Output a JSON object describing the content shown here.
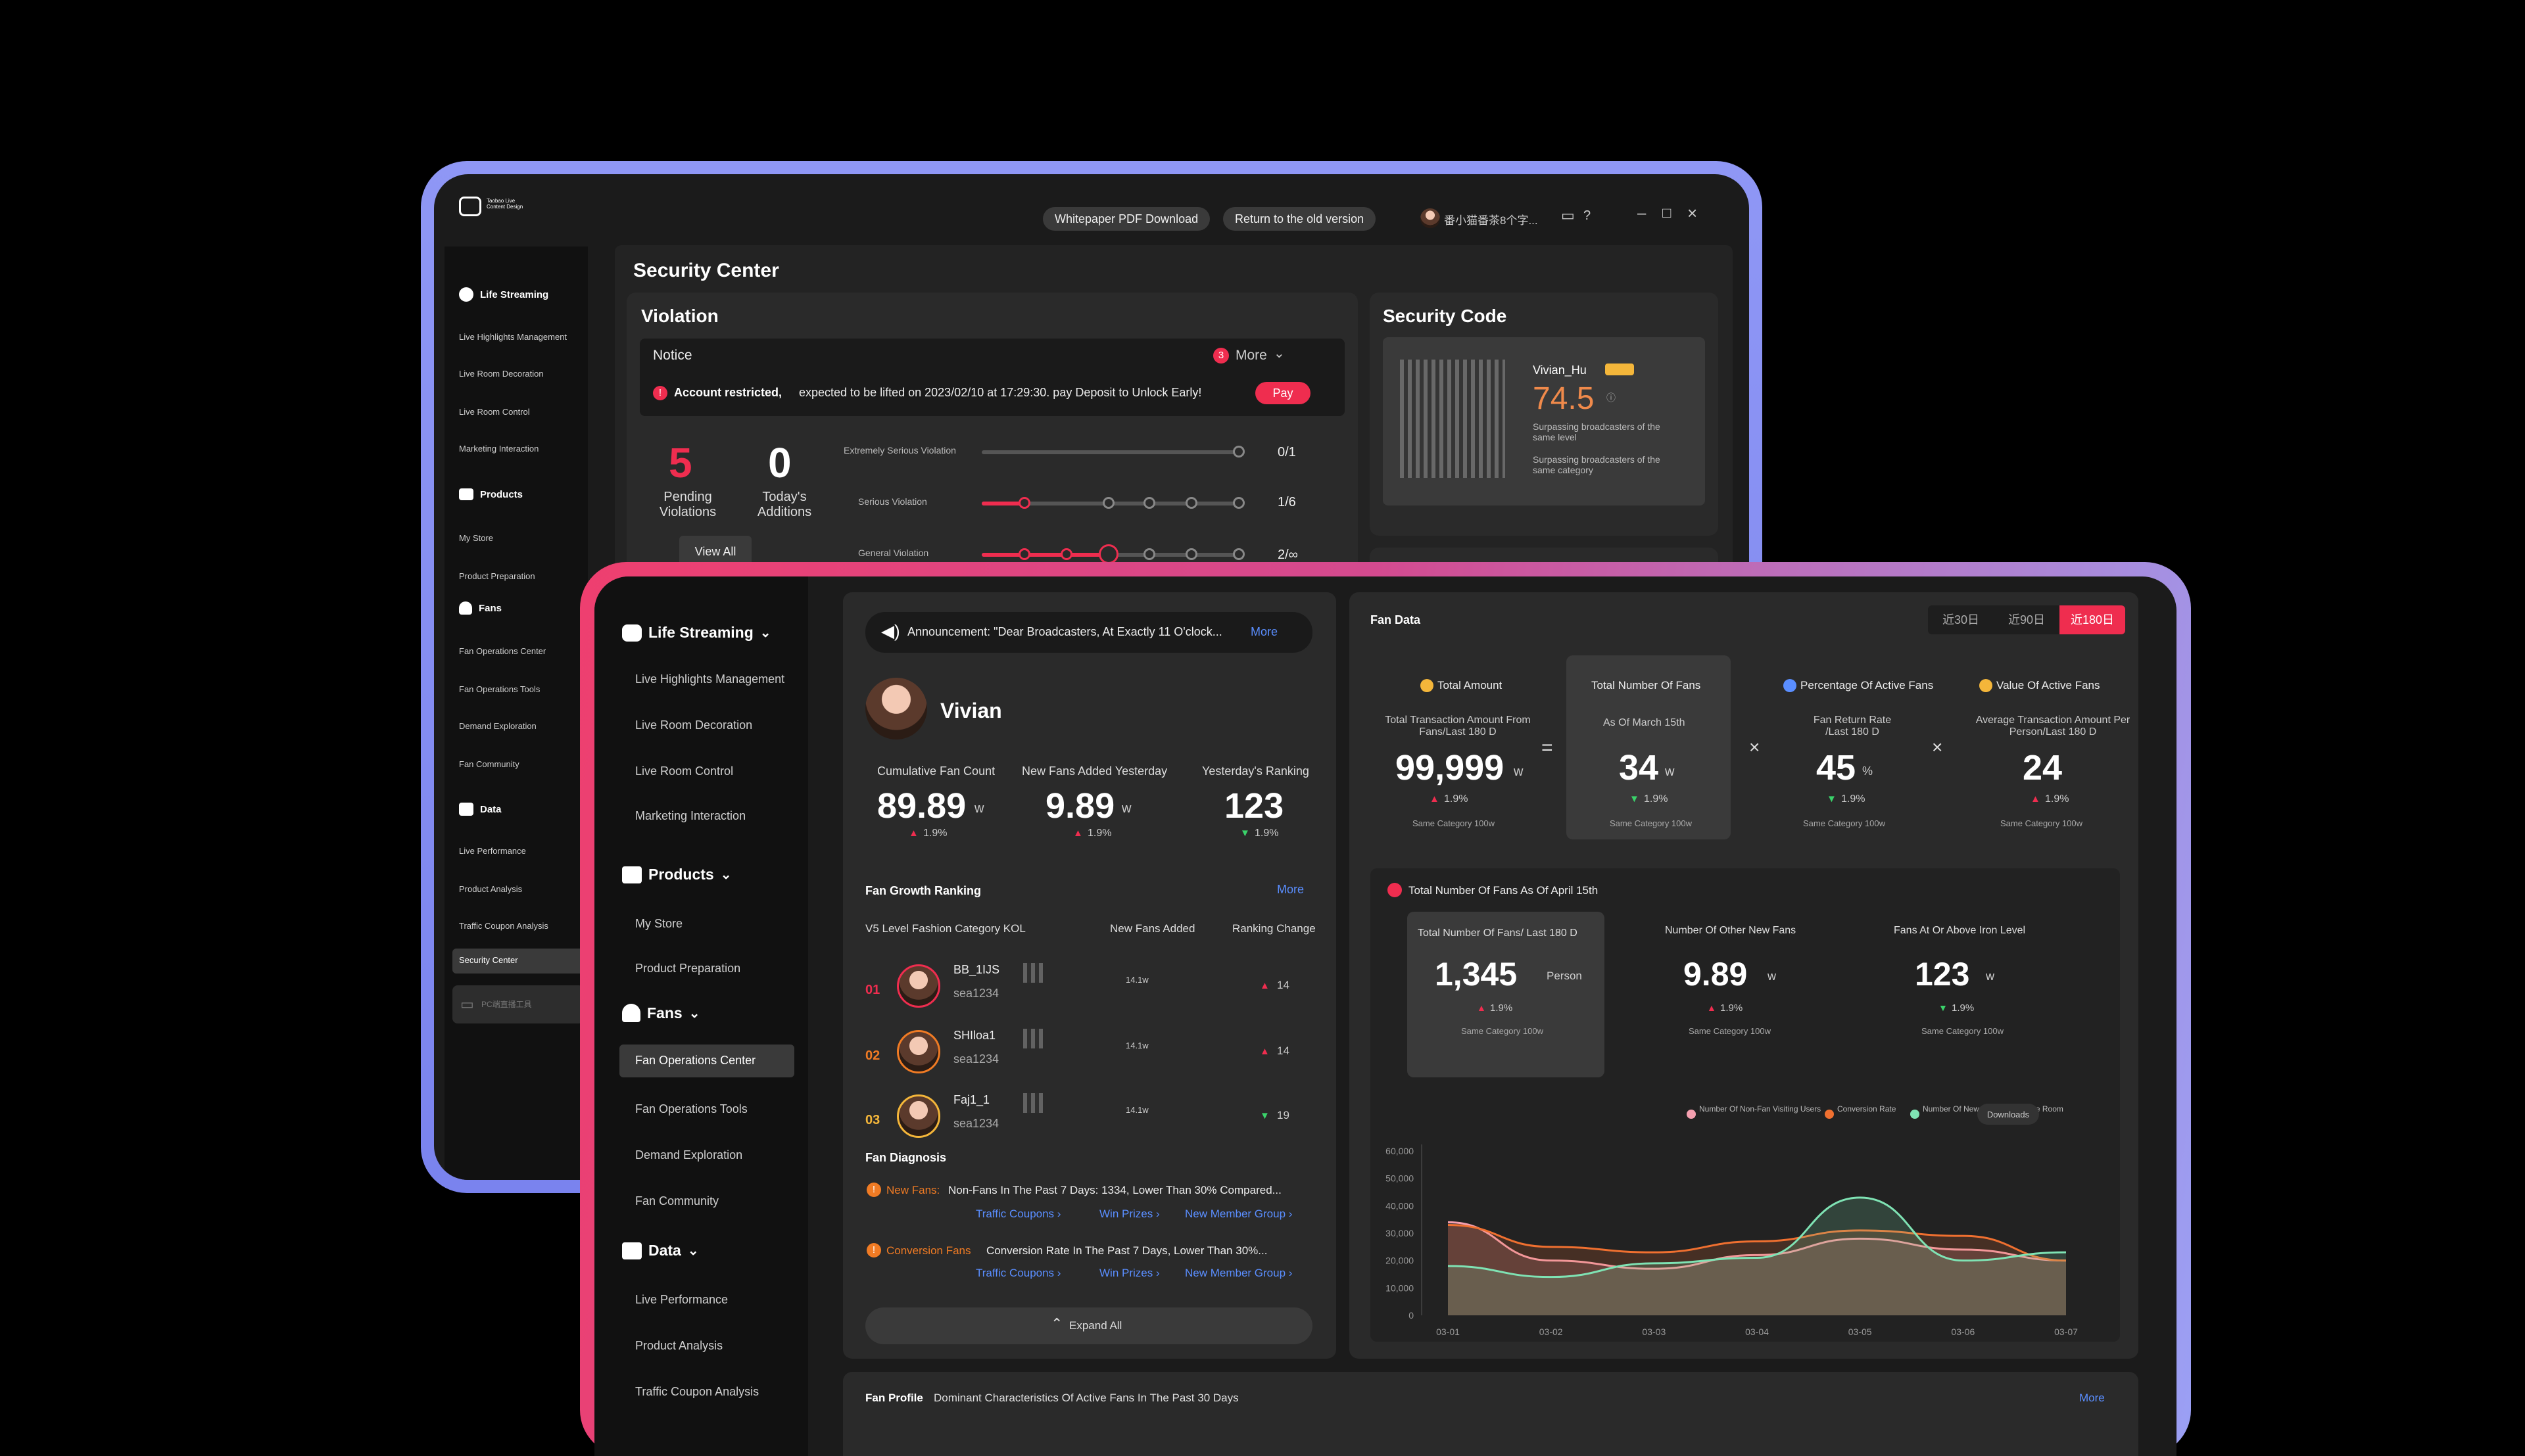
{
  "back": {
    "app_logo_text": "Taobao Live Content Design",
    "toolbar": {
      "whitepaper": "Whitepaper PDF Download",
      "old_version": "Return to the old version",
      "user": "番小猫番茶8个字..."
    },
    "sidebar": {
      "life_streaming": "Life Streaming",
      "ls_items": [
        "Live Highlights Management",
        "Live Room Decoration",
        "Live Room Control",
        "Marketing Interaction"
      ],
      "products": "Products",
      "p_items": [
        "My Store",
        "Product Preparation"
      ],
      "fans": "Fans",
      "f_items": [
        "Fan Operations Center",
        "Fan Operations Tools",
        "Demand Exploration",
        "Fan Community"
      ],
      "data": "Data",
      "d_items": [
        "Live Performance",
        "Product Analysis",
        "Traffic Coupon Analysis",
        "Security Center"
      ],
      "pc_tool": "PC端直播工具"
    },
    "page_title": "Security Center",
    "violation": {
      "title": "Violation",
      "notice": "Notice",
      "count": "3",
      "more": "More",
      "restricted_bold": "Account restricted,",
      "restricted_text": "expected to be lifted on 2023/02/10 at 17:29:30. pay Deposit to Unlock Early!",
      "pay": "Pay",
      "pending_num": "5",
      "pending_label": "Pending Violations",
      "today_num": "0",
      "today_label": "Today's Additions",
      "view_all": "View All",
      "rows": [
        {
          "label": "Extremely Serious Violation",
          "value": "0/1"
        },
        {
          "label": "Serious Violation",
          "value": "1/6"
        },
        {
          "label": "General Violation",
          "value": "2/∞"
        }
      ]
    },
    "security_code": {
      "title": "Security Code",
      "name": "Vivian_Hu",
      "score": "74.5",
      "line1": "Surpassing broadcasters of the same level",
      "line2": "Surpassing broadcasters of the same category"
    }
  },
  "front": {
    "sidebar": {
      "life_streaming": "Life Streaming",
      "ls_items": [
        "Live Highlights Management",
        "Live Room Decoration",
        "Live Room Control",
        "Marketing Interaction"
      ],
      "products": "Products",
      "p_items": [
        "My Store",
        "Product Preparation"
      ],
      "fans": "Fans",
      "f_items": [
        "Fan Operations Center",
        "Fan Operations Tools",
        "Demand Exploration",
        "Fan Community"
      ],
      "data": "Data",
      "d_items": [
        "Live Performance",
        "Product Analysis",
        "Traffic Coupon Analysis"
      ]
    },
    "announcement": {
      "text": "Announcement: \"Dear Broadcasters, At Exactly 11 O'clock...",
      "more": "More"
    },
    "profile": {
      "name": "Vivian",
      "stats": [
        {
          "label": "Cumulative Fan Count",
          "value": "89.89",
          "unit": "w",
          "change": "1.9%",
          "dir": "up"
        },
        {
          "label": "New Fans Added Yesterday",
          "value": "9.89",
          "unit": "w",
          "change": "1.9%",
          "dir": "up"
        },
        {
          "label": "Yesterday's Ranking",
          "value": "123",
          "unit": "",
          "change": "1.9%",
          "dir": "down"
        }
      ]
    },
    "ranking": {
      "title": "Fan Growth Ranking",
      "more": "More",
      "col1": "V5 Level Fashion Category KOL",
      "col2": "New Fans Added",
      "col3": "Ranking Change",
      "rows": [
        {
          "rank": "01",
          "name": "BB_1IJS",
          "id": "sea1234",
          "added": "14.1w",
          "change": "14",
          "dir": "up"
        },
        {
          "rank": "02",
          "name": "SHIloa1",
          "id": "sea1234",
          "added": "14.1w",
          "change": "14",
          "dir": "up"
        },
        {
          "rank": "03",
          "name": "Faj1_1",
          "id": "sea1234",
          "added": "14.1w",
          "change": "19",
          "dir": "down"
        }
      ]
    },
    "diagnosis": {
      "title": "Fan Diagnosis",
      "items": [
        {
          "tag": "New Fans:",
          "text": "Non-Fans In The Past 7 Days: 1334, Lower Than 30% Compared...",
          "links": [
            "Traffic Coupons ›",
            "Win Prizes ›",
            "New Member Group ›"
          ]
        },
        {
          "tag": "Conversion Fans",
          "text": "Conversion Rate In The Past 7 Days, Lower Than 30%...",
          "links": [
            "Traffic Coupons ›",
            "Win Prizes ›",
            "New Member Group ›"
          ]
        }
      ],
      "expand": "Expand All"
    },
    "fan_data": {
      "title": "Fan Data",
      "tabs": [
        "近30日",
        "近90日",
        "近180日"
      ],
      "metrics": [
        {
          "head": "Total Amount",
          "sub": "Total Transaction Amount From Fans/Last 180 D",
          "value": "99,999",
          "unit": "w",
          "change": "1.9%",
          "dir": "up",
          "foot": "Same Category 100w"
        },
        {
          "head": "Total Number Of Fans",
          "sub": "As Of March 15th",
          "value": "34",
          "unit": "w",
          "change": "1.9%",
          "dir": "down",
          "foot": "Same Category 100w"
        },
        {
          "head": "Percentage Of Active Fans",
          "sub": "Fan Return Rate /Last 180 D",
          "value": "45",
          "unit": "%",
          "change": "1.9%",
          "dir": "down",
          "foot": "Same Category 100w"
        },
        {
          "head": "Value Of Active Fans",
          "sub": "Average Transaction Amount Per Person/Last 180 D",
          "value": "24",
          "unit": "",
          "change": "1.9%",
          "dir": "up",
          "foot": "Same Category 100w"
        }
      ],
      "ops": [
        "=",
        "×",
        "×"
      ],
      "fans_section": {
        "title": "Total Number Of Fans  As Of April 15th",
        "cards": [
          {
            "label": "Total Number Of Fans/ Last 180 D",
            "value": "1,345",
            "unit": "Person",
            "change": "1.9%",
            "dir": "up",
            "foot": "Same Category 100w"
          },
          {
            "label": "Number Of Other New Fans",
            "value": "9.89",
            "unit": "w",
            "change": "1.9%",
            "dir": "up",
            "foot": "Same Category 100w"
          },
          {
            "label": "Fans At Or Above Iron Level",
            "value": "123",
            "unit": "w",
            "change": "1.9%",
            "dir": "down",
            "foot": "Same Category 100w"
          }
        ]
      }
    },
    "profile_bar": {
      "title": "Fan Profile",
      "text": "Dominant Characteristics Of Active Fans In The Past 30 Days",
      "more": "More"
    }
  },
  "chart_data": {
    "type": "area",
    "x": [
      "03-01",
      "03-02",
      "03-03",
      "03-04",
      "03-05",
      "03-06",
      "03-07"
    ],
    "ylim": [
      0,
      60000
    ],
    "yticks": [
      "60,000",
      "50,000",
      "40,000",
      "30,000",
      "20,000",
      "10,000",
      "0"
    ],
    "legend": [
      "Number Of Non-Fan Visiting Users",
      "Conversion Rate",
      "Number Of New Fans In The Live Room"
    ],
    "downloads": "Downloads",
    "series": [
      {
        "name": "Number Of Non-Fan Visiting Users",
        "color": "#f5a0b0",
        "values": [
          34000,
          20000,
          17000,
          22000,
          28000,
          24000,
          20000
        ]
      },
      {
        "name": "Conversion Rate",
        "color": "#f07030",
        "values": [
          33000,
          25000,
          23000,
          27000,
          31000,
          29000,
          20000
        ]
      },
      {
        "name": "Number Of New Fans In The Live Room",
        "color": "#7fe3b4",
        "values": [
          18000,
          14000,
          19000,
          21000,
          43000,
          20000,
          23000
        ]
      }
    ]
  }
}
